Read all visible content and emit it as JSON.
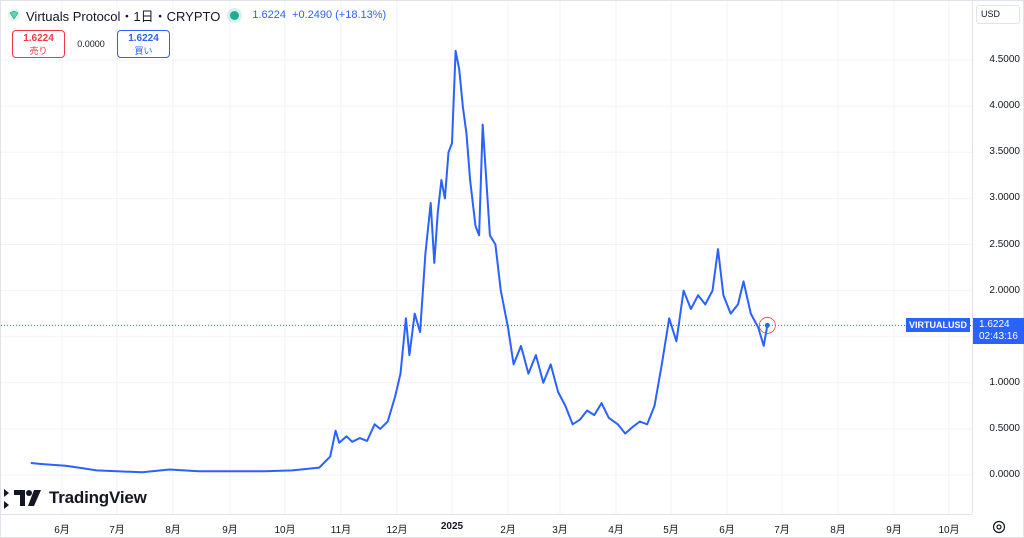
{
  "header": {
    "title": "Virtuals Protocol・1日・CRYPTO",
    "last_price": "1.6224",
    "change": "+0.2490 (+18.13%)"
  },
  "trade": {
    "sell_price": "1.6224",
    "sell_label": "売り",
    "spread": "0.0000",
    "buy_price": "1.6224",
    "buy_label": "買い"
  },
  "currency": "USD",
  "watermark": "TradingView",
  "price_label": {
    "symbol": "VIRTUALUSD",
    "value": "1.6224",
    "countdown": "02:43:16"
  },
  "colors": {
    "line": "#2962ff",
    "accent": "#2962ff",
    "sell": "#f23645",
    "live": "#22ab94"
  },
  "chart_data": {
    "type": "line",
    "x_label_kind": "month",
    "x_ticks": [
      "6月",
      "7月",
      "8月",
      "9月",
      "10月",
      "11月",
      "12月",
      "2025",
      "2月",
      "3月",
      "4月",
      "5月",
      "6月",
      "7月",
      "8月",
      "9月",
      "10月"
    ],
    "y_ticks": [
      "0.0000",
      "0.5000",
      "1.0000",
      "1.5000",
      "2.0000",
      "2.5000",
      "3.0000",
      "3.5000",
      "4.0000",
      "4.5000"
    ],
    "ylim": [
      -0.3,
      5.0
    ],
    "grid": true,
    "series": [
      {
        "values": [
          [
            "2024-05-15",
            0.13
          ],
          [
            "2024-05-20",
            0.12
          ],
          [
            "2024-05-27",
            0.11
          ],
          [
            "2024-06-03",
            0.1
          ],
          [
            "2024-06-10",
            0.08
          ],
          [
            "2024-06-20",
            0.05
          ],
          [
            "2024-07-01",
            0.04
          ],
          [
            "2024-07-15",
            0.03
          ],
          [
            "2024-07-30",
            0.06
          ],
          [
            "2024-08-15",
            0.04
          ],
          [
            "2024-09-01",
            0.04
          ],
          [
            "2024-09-20",
            0.04
          ],
          [
            "2024-10-05",
            0.05
          ],
          [
            "2024-10-20",
            0.08
          ],
          [
            "2024-10-26",
            0.2
          ],
          [
            "2024-10-29",
            0.48
          ],
          [
            "2024-10-31",
            0.35
          ],
          [
            "2024-11-04",
            0.42
          ],
          [
            "2024-11-07",
            0.36
          ],
          [
            "2024-11-11",
            0.4
          ],
          [
            "2024-11-15",
            0.37
          ],
          [
            "2024-11-19",
            0.55
          ],
          [
            "2024-11-22",
            0.5
          ],
          [
            "2024-11-26",
            0.58
          ],
          [
            "2024-11-30",
            0.85
          ],
          [
            "2024-12-03",
            1.1
          ],
          [
            "2024-12-06",
            1.7
          ],
          [
            "2024-12-08",
            1.3
          ],
          [
            "2024-12-11",
            1.75
          ],
          [
            "2024-12-14",
            1.55
          ],
          [
            "2024-12-17",
            2.4
          ],
          [
            "2024-12-20",
            2.95
          ],
          [
            "2024-12-22",
            2.3
          ],
          [
            "2024-12-24",
            2.85
          ],
          [
            "2024-12-26",
            3.2
          ],
          [
            "2024-12-28",
            3.0
          ],
          [
            "2024-12-30",
            3.5
          ],
          [
            "2025-01-01",
            3.6
          ],
          [
            "2025-01-03",
            4.6
          ],
          [
            "2025-01-05",
            4.4
          ],
          [
            "2025-01-07",
            4.0
          ],
          [
            "2025-01-09",
            3.7
          ],
          [
            "2025-01-11",
            3.2
          ],
          [
            "2025-01-14",
            2.7
          ],
          [
            "2025-01-16",
            2.6
          ],
          [
            "2025-01-18",
            3.8
          ],
          [
            "2025-01-20",
            3.2
          ],
          [
            "2025-01-22",
            2.6
          ],
          [
            "2025-01-25",
            2.5
          ],
          [
            "2025-01-28",
            2.0
          ],
          [
            "2025-02-01",
            1.6
          ],
          [
            "2025-02-04",
            1.2
          ],
          [
            "2025-02-08",
            1.4
          ],
          [
            "2025-02-12",
            1.1
          ],
          [
            "2025-02-16",
            1.3
          ],
          [
            "2025-02-20",
            1.0
          ],
          [
            "2025-02-24",
            1.2
          ],
          [
            "2025-02-28",
            0.9
          ],
          [
            "2025-03-04",
            0.75
          ],
          [
            "2025-03-08",
            0.55
          ],
          [
            "2025-03-12",
            0.6
          ],
          [
            "2025-03-16",
            0.7
          ],
          [
            "2025-03-20",
            0.65
          ],
          [
            "2025-03-24",
            0.78
          ],
          [
            "2025-03-28",
            0.62
          ],
          [
            "2025-04-02",
            0.55
          ],
          [
            "2025-04-06",
            0.45
          ],
          [
            "2025-04-10",
            0.52
          ],
          [
            "2025-04-14",
            0.58
          ],
          [
            "2025-04-18",
            0.55
          ],
          [
            "2025-04-22",
            0.75
          ],
          [
            "2025-04-26",
            1.2
          ],
          [
            "2025-04-30",
            1.7
          ],
          [
            "2025-05-04",
            1.45
          ],
          [
            "2025-05-08",
            2.0
          ],
          [
            "2025-05-12",
            1.8
          ],
          [
            "2025-05-16",
            1.95
          ],
          [
            "2025-05-20",
            1.85
          ],
          [
            "2025-05-24",
            2.0
          ],
          [
            "2025-05-27",
            2.45
          ],
          [
            "2025-05-30",
            1.95
          ],
          [
            "2025-06-03",
            1.75
          ],
          [
            "2025-06-07",
            1.85
          ],
          [
            "2025-06-10",
            2.1
          ],
          [
            "2025-06-14",
            1.75
          ],
          [
            "2025-06-18",
            1.6
          ],
          [
            "2025-06-21",
            1.4
          ],
          [
            "2025-06-23",
            1.62
          ]
        ]
      }
    ]
  }
}
